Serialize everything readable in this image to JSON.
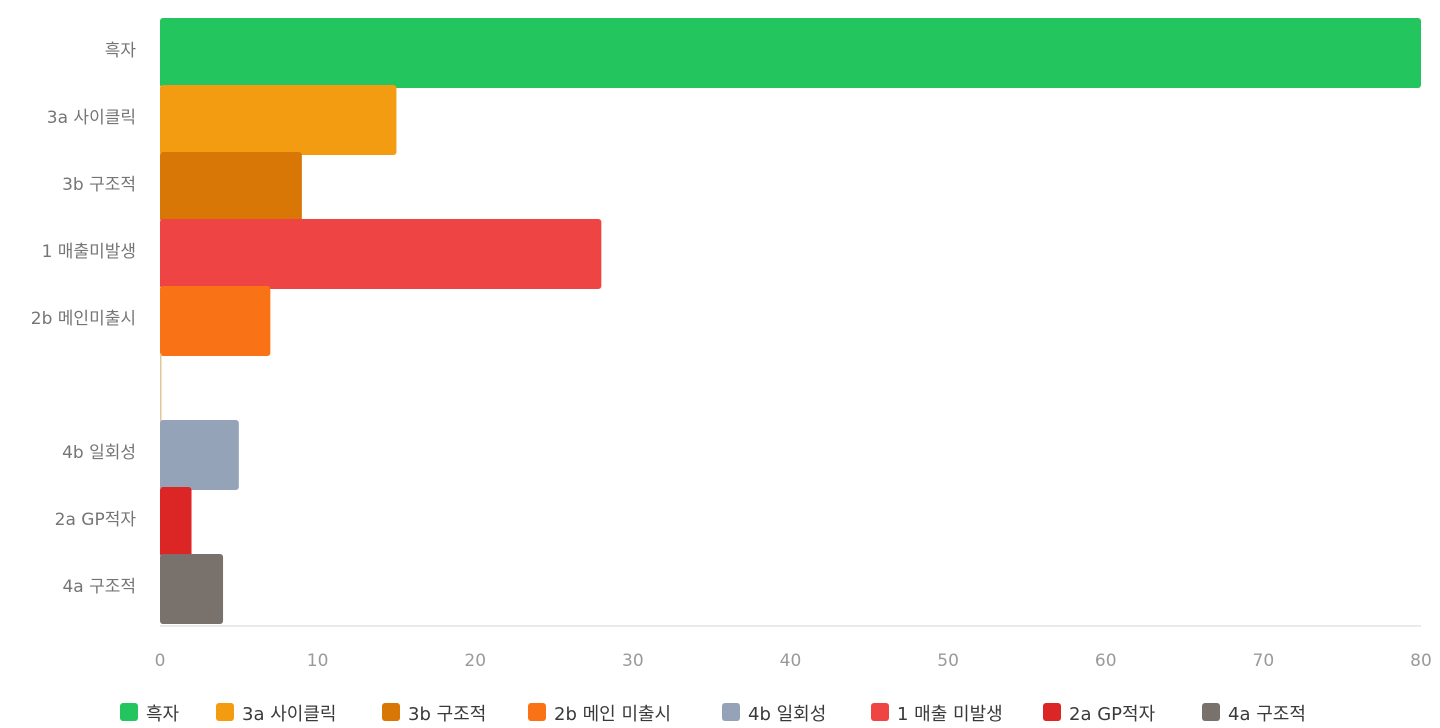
{
  "chart_data": {
    "type": "bar",
    "orientation": "horizontal",
    "title": "",
    "xlabel": "",
    "ylabel": "",
    "xlim": [
      0,
      80
    ],
    "x_ticks": [
      0,
      10,
      20,
      30,
      40,
      50,
      60,
      70,
      80
    ],
    "grid": false,
    "categories": [
      "흑자",
      "3a 사이클릭",
      "3b 구조적",
      "1 매출미발생",
      "2b 메인미출시",
      "",
      "4b 일회성",
      "2a GP적자",
      "4a 구조적"
    ],
    "values": [
      80,
      15,
      9,
      28,
      7,
      0,
      5,
      2,
      4
    ],
    "bar_colors": [
      "#22c55e",
      "#f39c12",
      "#d97706",
      "#ef4444",
      "#f97316",
      "#e0c79a",
      "#94a3b8",
      "#dc2626",
      "#78716c"
    ],
    "legend_position": "bottom",
    "legend": [
      {
        "label": "흑자",
        "color": "#22c55e"
      },
      {
        "label": "3a 사이클릭",
        "color": "#f39c12"
      },
      {
        "label": "3b 구조적",
        "color": "#d97706"
      },
      {
        "label": "2b 메인 미출시",
        "color": "#f97316"
      },
      {
        "label": "4b 일회성",
        "color": "#94a3b8"
      },
      {
        "label": "1 매출 미발생",
        "color": "#ef4444"
      },
      {
        "label": "2a GP적자",
        "color": "#dc2626"
      },
      {
        "label": "4a 구조적",
        "color": "#78716c"
      }
    ]
  }
}
